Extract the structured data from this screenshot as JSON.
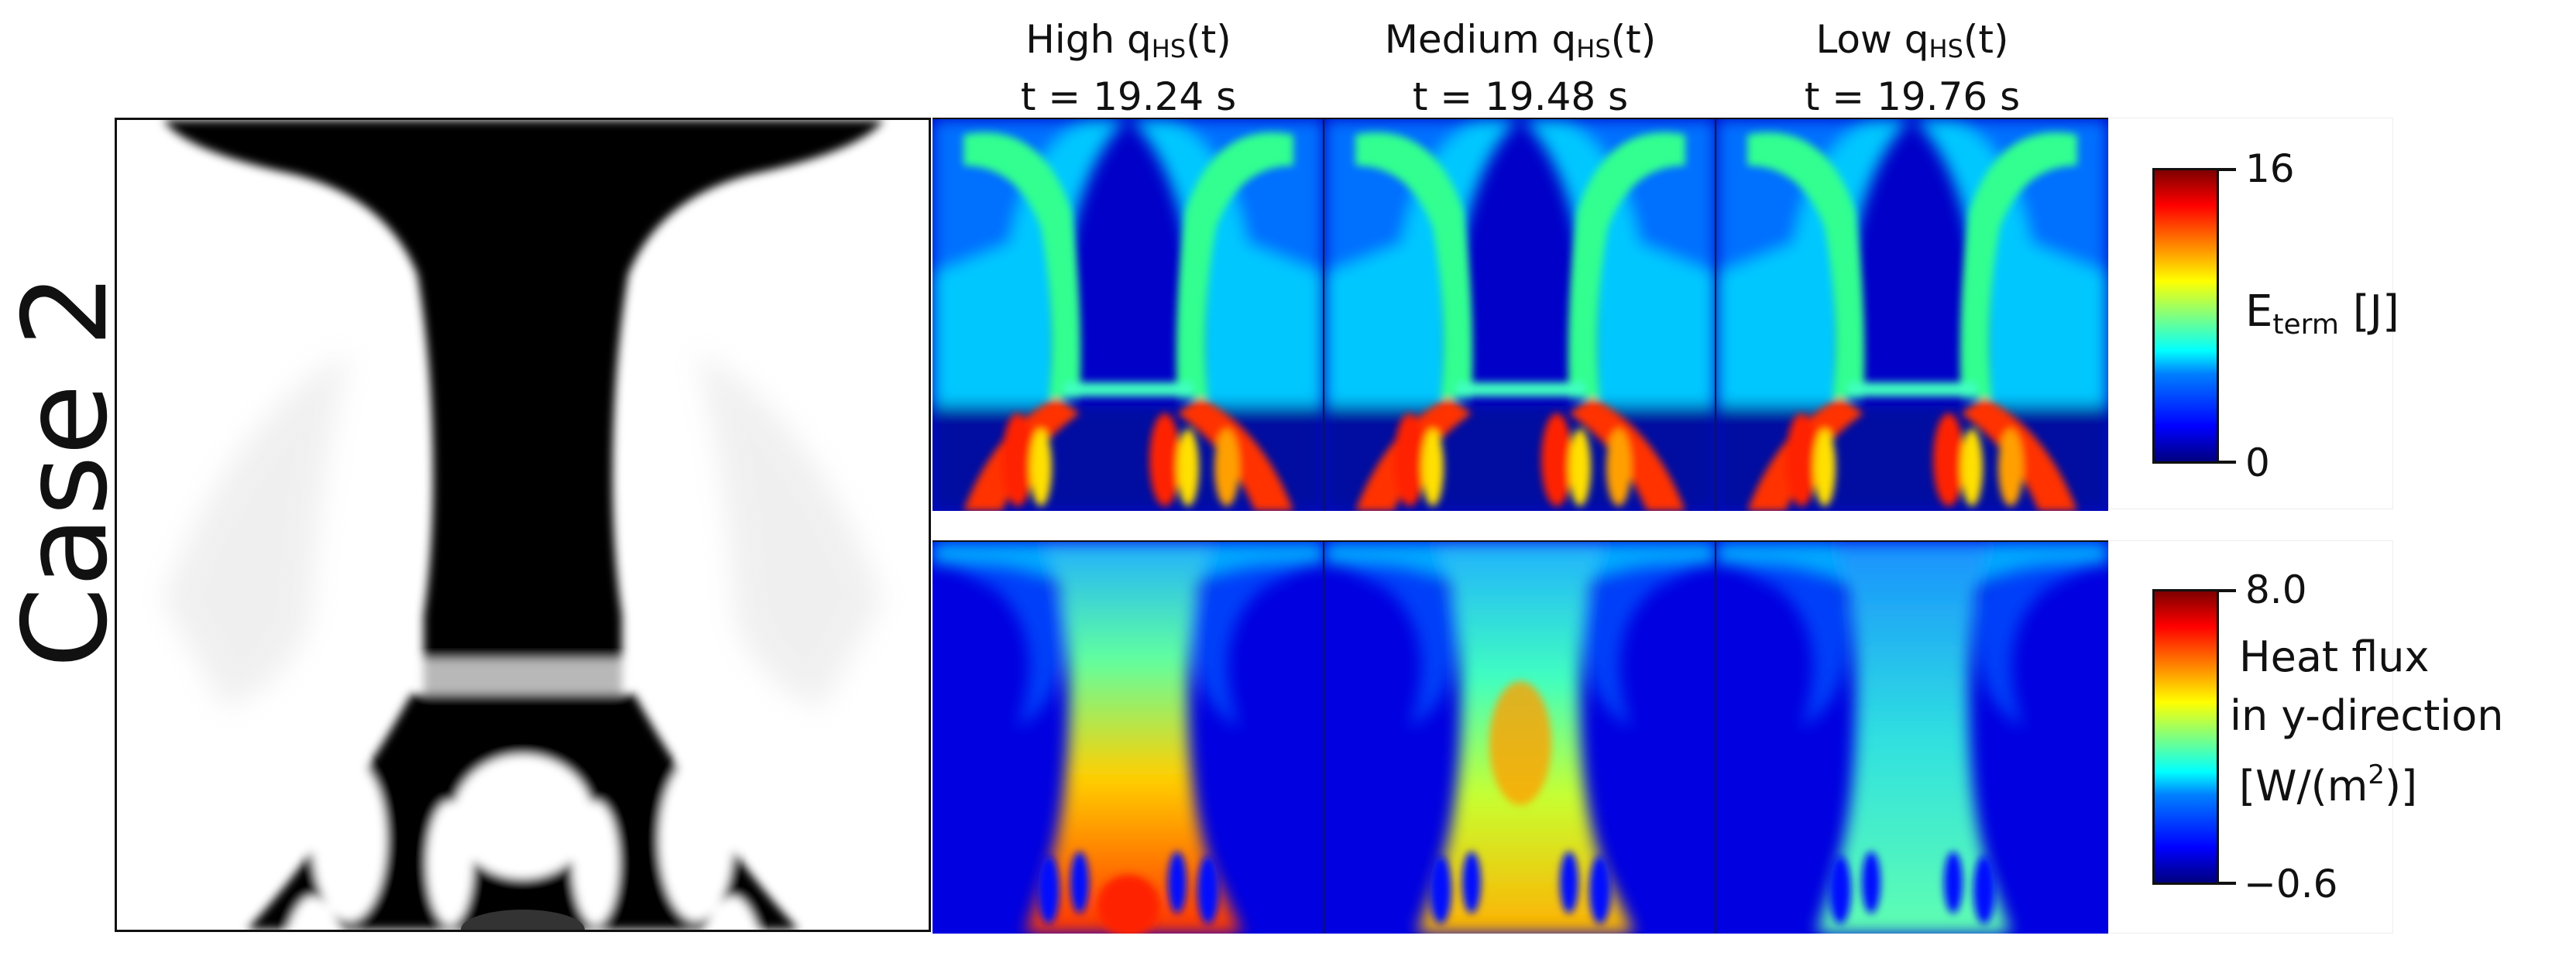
{
  "case_label": "Case 2",
  "headings": [
    {
      "name": "High q",
      "sub": "HS",
      "suffix": "(t)",
      "time": "t = 19.24 s"
    },
    {
      "name": "Medium q",
      "sub": "HS",
      "suffix": "(t)",
      "time": "t = 19.48 s"
    },
    {
      "name": "Low q",
      "sub": "HS",
      "suffix": "(t)",
      "time": "t = 19.76 s"
    }
  ],
  "energy_colorbar": {
    "max": "16",
    "min": "0",
    "title_main": "E",
    "title_sub": "term",
    "title_unit": " [J]"
  },
  "flux_colorbar": {
    "max": "8.0",
    "min": "−0.6",
    "title_line1": "Heat flux",
    "title_line2": "in y-direction",
    "title_line3_pre": "[W/(m",
    "title_line3_sup": "2",
    "title_line3_post": ")]"
  },
  "colors": {
    "jet_dark_blue": "#00007f",
    "jet_blue": "#0000ff",
    "jet_cyan": "#00ffff",
    "jet_yellow": "#ffff00",
    "jet_red": "#ff0000",
    "jet_dark_red": "#7f0000",
    "phase_black": "#000000",
    "phase_white": "#ffffff"
  }
}
